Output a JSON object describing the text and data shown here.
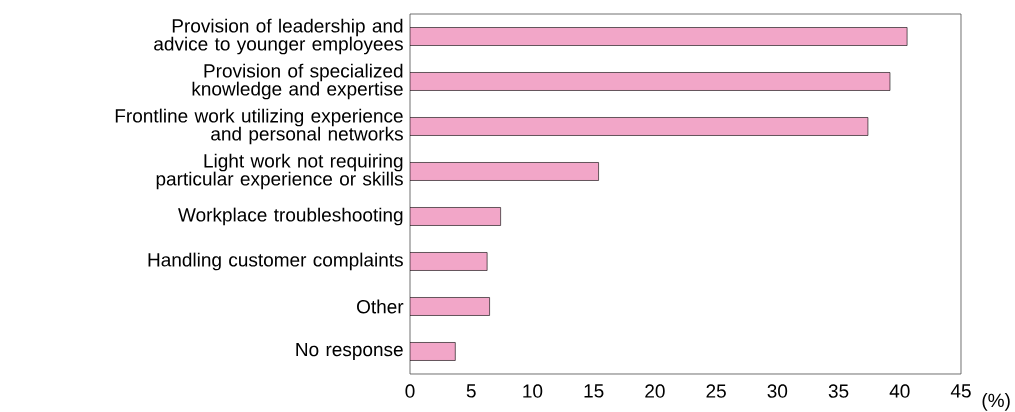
{
  "chart_data": {
    "type": "bar",
    "orientation": "horizontal",
    "xlabel": "(%)",
    "categories": [
      "Provision of leadership and advice to younger employees",
      "Provision of specialized knowledge and expertise",
      "Frontline work utilizing experience and personal networks",
      "Light work not requiring particular experience or skills",
      "Workplace troubleshooting",
      "Handling customer complaints",
      "Other",
      "No response"
    ],
    "values": [
      40.6,
      39.2,
      37.4,
      15.4,
      7.4,
      6.3,
      6.5,
      3.7
    ],
    "color": "#f2a6c8",
    "xlim": [
      0,
      45
    ],
    "xticks": [
      0,
      5,
      10,
      15,
      20,
      25,
      30,
      35,
      40,
      45
    ],
    "grid": false
  }
}
